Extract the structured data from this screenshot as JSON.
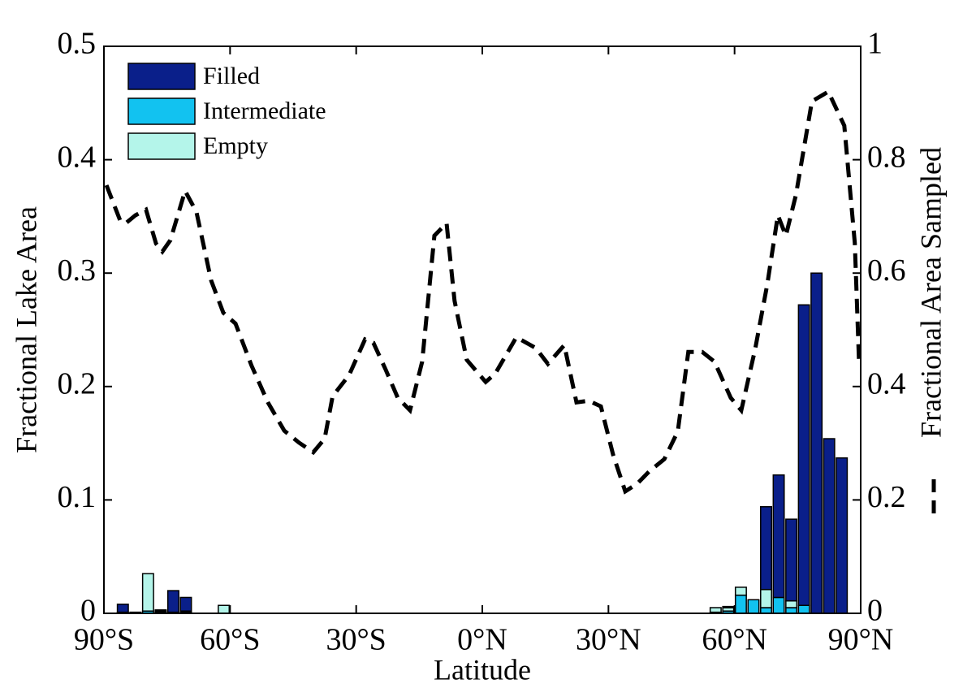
{
  "chart_data": {
    "type": "bar",
    "stacked": true,
    "xlabel": "Latitude",
    "ylabel": "Fractional Lake Area",
    "y2label": "Fractional Area Sampled",
    "xlim": [
      -90,
      90
    ],
    "xticks": [
      {
        "value": -90,
        "label": "90°S"
      },
      {
        "value": -60,
        "label": "60°S"
      },
      {
        "value": -30,
        "label": "30°S"
      },
      {
        "value": 0,
        "label": "0°N"
      },
      {
        "value": 30,
        "label": "30°N"
      },
      {
        "value": 60,
        "label": "60°N"
      },
      {
        "value": 90,
        "label": "90°N"
      }
    ],
    "ylim": [
      0,
      0.5
    ],
    "yticks": [
      0,
      0.1,
      0.2,
      0.3,
      0.4,
      0.5
    ],
    "y2lim": [
      0,
      1
    ],
    "y2ticks": [
      0,
      0.2,
      0.4,
      0.6,
      0.8,
      1
    ],
    "legend": "upper left",
    "bar_width": 2.6,
    "x": [
      -85.5,
      -82.5,
      -79.5,
      -76.5,
      -73.5,
      -70.5,
      -61.5,
      55.5,
      58.5,
      61.5,
      64.5,
      67.5,
      70.5,
      73.5,
      76.5,
      79.5,
      82.5,
      85.5
    ],
    "series": [
      {
        "name": "Filled",
        "color": "#0a1f8a",
        "values": [
          0.007,
          0,
          0,
          0.001,
          0.019,
          0.012,
          0,
          0,
          0.001,
          0,
          0,
          0.073,
          0.108,
          0.072,
          0.265,
          0.3,
          0.154,
          0.137
        ]
      },
      {
        "name": "Intermediate",
        "color": "#12c2f0",
        "values": [
          0,
          0,
          0.002,
          0.001,
          0,
          0.001,
          0,
          0.001,
          0.002,
          0.016,
          0.012,
          0.005,
          0.014,
          0.005,
          0.007,
          0,
          0,
          0
        ]
      },
      {
        "name": "Empty",
        "color": "#b4f5ea",
        "values": [
          0.001,
          0.001,
          0.033,
          0.001,
          0.001,
          0.001,
          0.007,
          0.004,
          0.003,
          0.007,
          0,
          0.016,
          0,
          0.006,
          0,
          0,
          0,
          0
        ]
      }
    ],
    "stack_order": [
      "Intermediate",
      "Empty",
      "Filled"
    ],
    "line": {
      "type": "line",
      "axis": "y2",
      "color": "#000000",
      "dashed": true,
      "x": [
        -89.4,
        -86.1,
        -84.8,
        -82.5,
        -80.0,
        -77.6,
        -76.1,
        -74.2,
        -70.7,
        -68.0,
        -64.5,
        -61.6,
        -58.7,
        -54.9,
        -51.0,
        -47.1,
        -43.6,
        -40.2,
        -37.5,
        -35.6,
        -31.7,
        -27.9,
        -25.9,
        -23.0,
        -20.1,
        -17.2,
        -14.3,
        -11.4,
        -8.5,
        -6.6,
        -3.7,
        0.8,
        3.1,
        8.1,
        12.7,
        15.6,
        19.5,
        22.4,
        25.3,
        28.2,
        31.1,
        34.0,
        36.9,
        39.8,
        43.3,
        46.5,
        49.0,
        52.3,
        55.2,
        59.1,
        61.6,
        64.9,
        67.8,
        70.3,
        72.2,
        74.6,
        78.4,
        82.3,
        86.1,
        88.6,
        89.6
      ],
      "values": [
        0.755,
        0.692,
        0.688,
        0.702,
        0.712,
        0.652,
        0.638,
        0.658,
        0.745,
        0.708,
        0.587,
        0.53,
        0.511,
        0.437,
        0.372,
        0.322,
        0.301,
        0.284,
        0.308,
        0.383,
        0.42,
        0.483,
        0.477,
        0.43,
        0.38,
        0.358,
        0.444,
        0.666,
        0.688,
        0.551,
        0.447,
        0.408,
        0.423,
        0.487,
        0.468,
        0.44,
        0.473,
        0.372,
        0.375,
        0.365,
        0.28,
        0.215,
        0.229,
        0.251,
        0.272,
        0.321,
        0.461,
        0.461,
        0.444,
        0.38,
        0.358,
        0.466,
        0.581,
        0.702,
        0.666,
        0.738,
        0.903,
        0.92,
        0.86,
        0.653,
        0.444
      ]
    }
  }
}
